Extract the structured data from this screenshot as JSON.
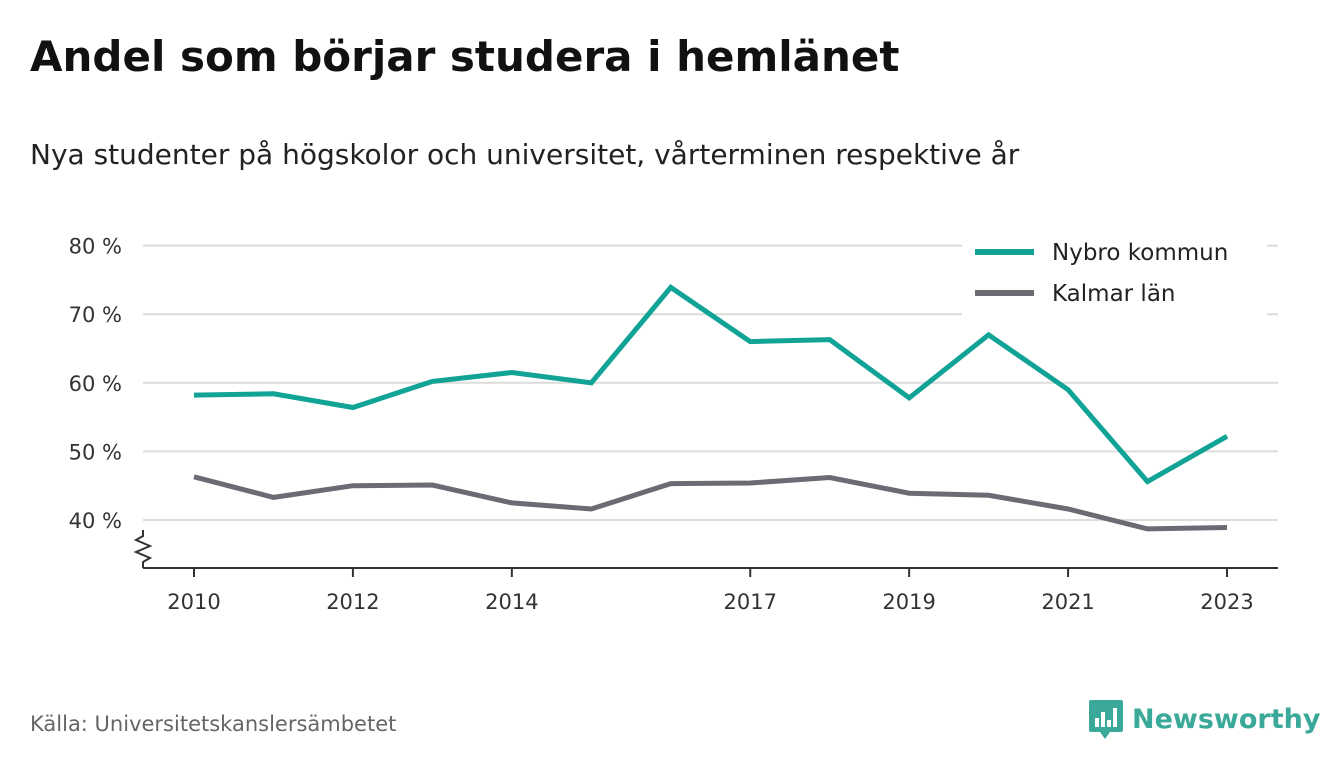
{
  "title": "Andel som börjar studera i hemlänet",
  "subtitle": "Nya studenter på högskolor och universitet, vårterminen respektive år",
  "source": "Källa: Universitetskanslersämbetet",
  "brand": {
    "name": "Newsworthy",
    "icon": "newsworthy-logo-icon",
    "color": "#3aa99a"
  },
  "chart_data": {
    "type": "line",
    "title": "Andel som börjar studera i hemlänet",
    "subtitle": "Nya studenter på högskolor och universitet, vårterminen respektive år",
    "x": [
      2010,
      2011,
      2012,
      2013,
      2014,
      2015,
      2016,
      2017,
      2018,
      2019,
      2020,
      2021,
      2022,
      2023
    ],
    "x_tick_labels": [
      "2010",
      "2012",
      "2014",
      "2017",
      "2019",
      "2021",
      "2023"
    ],
    "y_tick_labels": [
      "40 %",
      "50 %",
      "60 %",
      "70 %",
      "80 %"
    ],
    "y_ticks": [
      40,
      50,
      60,
      70,
      80
    ],
    "ylim": [
      33,
      81
    ],
    "y_axis_break": true,
    "grid": true,
    "legend_position": "top-right",
    "series": [
      {
        "name": "Nybro kommun",
        "color": "#10a396",
        "values": [
          58.2,
          58.4,
          56.4,
          60.2,
          61.5,
          60.0,
          73.9,
          66.0,
          66.3,
          57.8,
          67.0,
          59.0,
          45.6,
          52.2
        ]
      },
      {
        "name": "Kalmar län",
        "color": "#6c6b74",
        "values": [
          46.3,
          43.3,
          45.0,
          45.1,
          42.5,
          41.6,
          45.3,
          45.4,
          46.2,
          43.9,
          43.6,
          41.6,
          38.7,
          38.9
        ]
      }
    ]
  }
}
